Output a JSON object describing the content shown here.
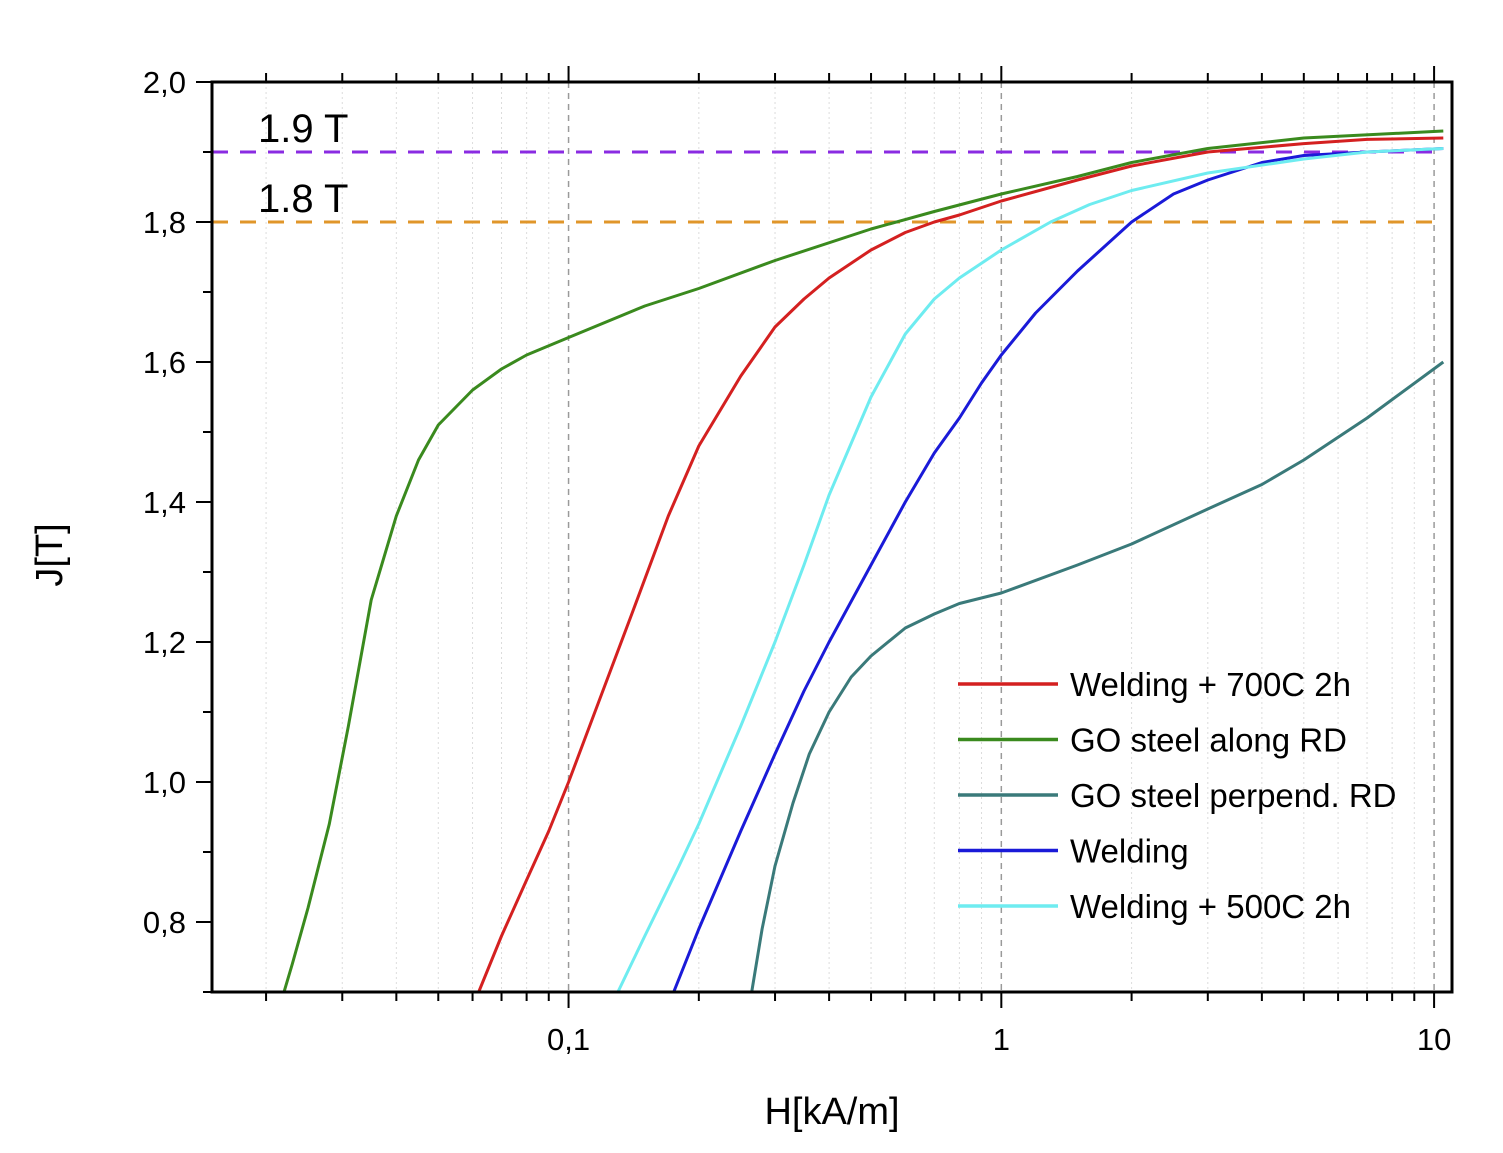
{
  "chart_data": {
    "type": "line",
    "xlabel": "H[kA/m]",
    "ylabel": "J[T]",
    "xscale": "log",
    "xlim": [
      0.015,
      11
    ],
    "ylim": [
      0.7,
      2.0
    ],
    "x_ticks": [
      {
        "value": 0.1,
        "label": "0,1"
      },
      {
        "value": 1,
        "label": "1"
      },
      {
        "value": 10,
        "label": "10"
      }
    ],
    "y_ticks": [
      {
        "value": 0.8,
        "label": "0,8"
      },
      {
        "value": 1.0,
        "label": "1,0"
      },
      {
        "value": 1.2,
        "label": "1,2"
      },
      {
        "value": 1.4,
        "label": "1,4"
      },
      {
        "value": 1.6,
        "label": "1,6"
      },
      {
        "value": 1.8,
        "label": "1,8"
      },
      {
        "value": 2.0,
        "label": "2,0"
      }
    ],
    "grid": "vertical dashed at decades, light vertical minor grid",
    "legend_position": "bottom-right",
    "reference_lines": [
      {
        "y": 1.9,
        "label": "1.9 T",
        "color": "#8a2be2"
      },
      {
        "y": 1.8,
        "label": "1.8 T",
        "color": "#e0962a"
      }
    ],
    "series": [
      {
        "name": "Welding + 700C 2h",
        "color": "#d42020",
        "x": [
          0.062,
          0.07,
          0.08,
          0.09,
          0.1,
          0.12,
          0.14,
          0.17,
          0.2,
          0.25,
          0.3,
          0.35,
          0.4,
          0.5,
          0.6,
          0.7,
          0.8,
          1.0,
          1.5,
          2.0,
          3.0,
          5.0,
          7.0,
          10.5
        ],
        "y": [
          0.7,
          0.78,
          0.86,
          0.93,
          1.0,
          1.13,
          1.24,
          1.38,
          1.48,
          1.58,
          1.65,
          1.69,
          1.72,
          1.76,
          1.785,
          1.8,
          1.81,
          1.83,
          1.86,
          1.88,
          1.9,
          1.912,
          1.918,
          1.92
        ]
      },
      {
        "name": "GO steel along RD",
        "color": "#3a8a1e",
        "x": [
          0.022,
          0.023,
          0.025,
          0.028,
          0.031,
          0.035,
          0.04,
          0.045,
          0.05,
          0.06,
          0.07,
          0.08,
          0.1,
          0.15,
          0.2,
          0.3,
          0.5,
          0.7,
          1.0,
          1.5,
          2.0,
          3.0,
          5.0,
          10.5
        ],
        "y": [
          0.7,
          0.74,
          0.82,
          0.94,
          1.08,
          1.26,
          1.38,
          1.46,
          1.51,
          1.56,
          1.59,
          1.61,
          1.635,
          1.68,
          1.705,
          1.745,
          1.79,
          1.815,
          1.84,
          1.865,
          1.885,
          1.905,
          1.92,
          1.93
        ]
      },
      {
        "name": "GO steel perpend. RD",
        "color": "#3a7a7a",
        "x": [
          0.265,
          0.28,
          0.3,
          0.33,
          0.36,
          0.4,
          0.45,
          0.5,
          0.6,
          0.7,
          0.8,
          1.0,
          1.5,
          2.0,
          3.0,
          4.0,
          5.0,
          7.0,
          10.5
        ],
        "y": [
          0.7,
          0.79,
          0.88,
          0.97,
          1.04,
          1.1,
          1.15,
          1.18,
          1.22,
          1.24,
          1.255,
          1.27,
          1.31,
          1.34,
          1.39,
          1.425,
          1.46,
          1.52,
          1.6
        ]
      },
      {
        "name": "Welding",
        "color": "#1a1ad8",
        "x": [
          0.175,
          0.2,
          0.25,
          0.3,
          0.35,
          0.4,
          0.5,
          0.6,
          0.7,
          0.8,
          0.9,
          1.0,
          1.2,
          1.5,
          2.0,
          2.5,
          3.0,
          4.0,
          5.0,
          7.0,
          10.5
        ],
        "y": [
          0.7,
          0.79,
          0.93,
          1.04,
          1.13,
          1.2,
          1.31,
          1.4,
          1.47,
          1.52,
          1.57,
          1.61,
          1.67,
          1.73,
          1.8,
          1.84,
          1.86,
          1.885,
          1.895,
          1.9,
          1.905
        ]
      },
      {
        "name": "Welding + 500C 2h",
        "color": "#6eecf0",
        "x": [
          0.13,
          0.15,
          0.18,
          0.2,
          0.25,
          0.3,
          0.35,
          0.4,
          0.5,
          0.6,
          0.7,
          0.8,
          1.0,
          1.3,
          1.6,
          2.0,
          3.0,
          5.0,
          7.0,
          10.5
        ],
        "y": [
          0.7,
          0.78,
          0.88,
          0.94,
          1.08,
          1.2,
          1.31,
          1.41,
          1.55,
          1.64,
          1.69,
          1.72,
          1.76,
          1.8,
          1.825,
          1.845,
          1.87,
          1.89,
          1.9,
          1.905
        ]
      }
    ]
  }
}
